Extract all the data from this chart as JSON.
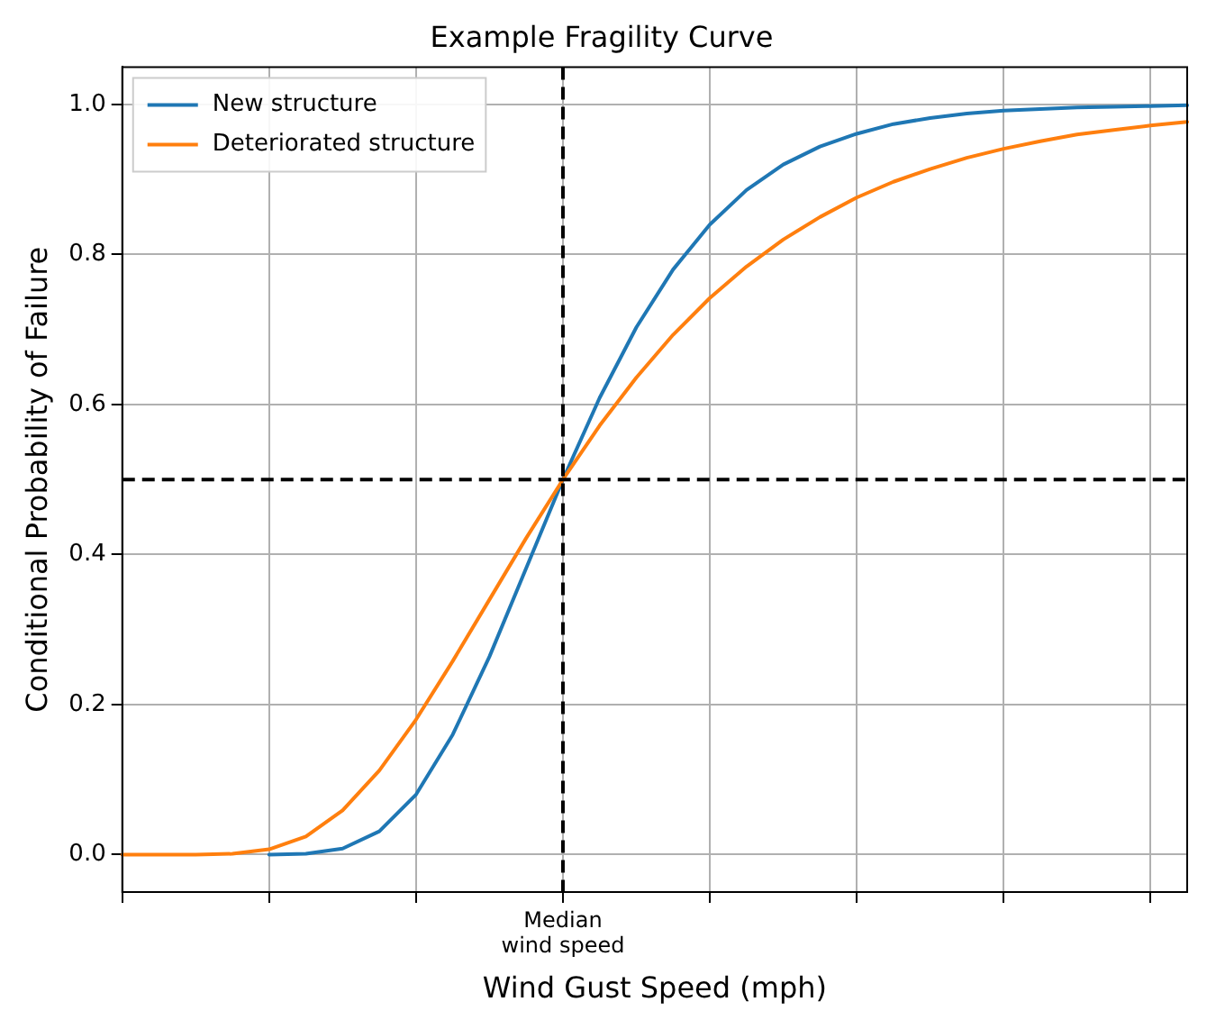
{
  "chart_data": {
    "type": "line",
    "title": "Example Fragility Curve",
    "xlabel": "Wind Gust Speed (mph)",
    "ylabel": "Conditional Probability of Failure",
    "categories": [
      null,
      null,
      null,
      null,
      null,
      null,
      null,
      null,
      null,
      null,
      null,
      null,
      "Median\nwind speed",
      null,
      null,
      null,
      null,
      null,
      null,
      null,
      null,
      null,
      null,
      null,
      null,
      null,
      null,
      null,
      null,
      null
    ],
    "series": [
      {
        "name": "New structure",
        "color": "#1f77b4",
        "values": [
          null,
          null,
          null,
          null,
          0,
          0.001,
          0.008,
          0.031,
          0.08,
          0.16,
          0.264,
          0.382,
          0.5,
          0.609,
          0.703,
          0.78,
          0.84,
          0.886,
          0.92,
          0.944,
          0.961,
          0.974,
          0.982,
          0.988,
          0.992,
          0.994,
          0.996,
          0.997,
          0.998,
          0.999
        ]
      },
      {
        "name": "Deteriorated structure",
        "color": "#ff7f0e",
        "values": [
          0,
          0,
          0,
          0.001,
          0.007,
          0.024,
          0.059,
          0.112,
          0.18,
          0.258,
          0.34,
          0.422,
          0.5,
          0.572,
          0.636,
          0.693,
          0.742,
          0.784,
          0.82,
          0.85,
          0.876,
          0.897,
          0.914,
          0.929,
          0.941,
          0.951,
          0.96,
          0.966,
          0.972,
          0.977
        ]
      }
    ],
    "ylim": [
      -0.05,
      1.05
    ],
    "yticks": [
      {
        "value": 0,
        "label": "0.0"
      },
      {
        "value": 0.2,
        "label": "0.2"
      },
      {
        "value": 0.4,
        "label": "0.4"
      },
      {
        "value": 0.6,
        "label": "0.6"
      },
      {
        "value": 0.8,
        "label": "0.8"
      },
      {
        "value": 1,
        "label": "1.0"
      }
    ],
    "ref_lines": [
      {
        "axis": "x",
        "value": "Median\nwind speed",
        "color": "#000000",
        "line_style": "dashed"
      },
      {
        "axis": "y",
        "value": 0.5,
        "color": "#000000",
        "line_style": "dashed"
      }
    ],
    "grid": true,
    "legend": "top left",
    "marker": "none",
    "line_style": "solid"
  }
}
